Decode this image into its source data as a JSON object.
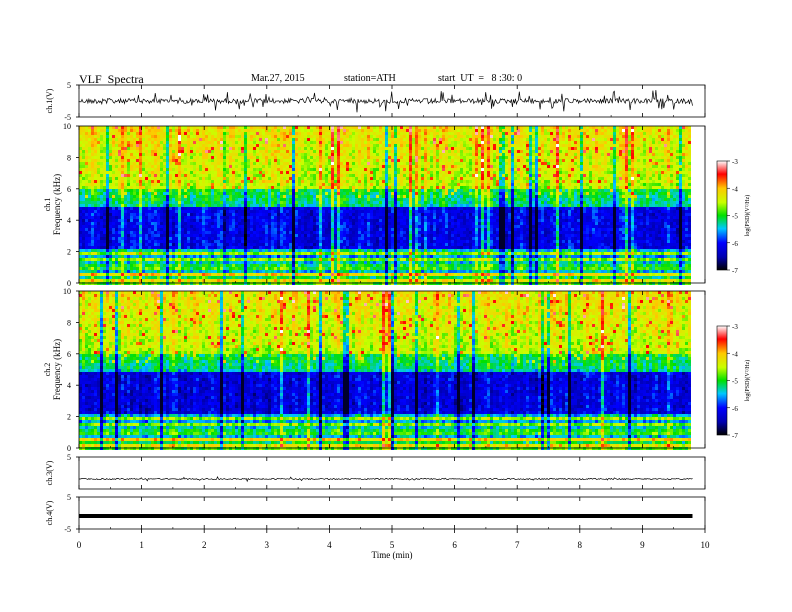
{
  "header": {
    "title": "VLF  Spectra",
    "date": "Mar.27, 2015",
    "station": "station=ATH",
    "start": "start  UT  =   8 :30: 0"
  },
  "chart_data": [
    {
      "type": "line",
      "panel": "ch.1 waveform",
      "ylabel": "ch.1(V)",
      "ylim": [
        -5,
        5
      ],
      "yticks": [
        5,
        -5
      ],
      "color": "#000000",
      "description_values": "noisy waveform near 0 V with spikes"
    },
    {
      "type": "heatmap",
      "panel": "ch.1 spectrogram",
      "ylabel_top": "ch.1",
      "ylabel": "Frequency  (kHz)",
      "ylim": [
        0,
        10
      ],
      "yticks": [
        0,
        2,
        4,
        6,
        8,
        10
      ],
      "xlim": [
        0,
        9.8
      ],
      "colorbar": {
        "label": "log(PSD)(V²/Hz)",
        "range": [
          -7,
          -3
        ],
        "ticks": [
          -3,
          -4,
          -5,
          -6,
          -7
        ]
      }
    },
    {
      "type": "heatmap",
      "panel": "ch.2 spectrogram",
      "ylabel_top": "ch.2",
      "ylabel": "Frequency  (kHz)",
      "ylim": [
        0,
        10
      ],
      "yticks": [
        0,
        2,
        4,
        6,
        8,
        10
      ],
      "xlim": [
        0,
        9.8
      ],
      "colorbar": {
        "label": "log(PSD)(V²/Hz)",
        "range": [
          -7,
          -3
        ],
        "ticks": [
          -3,
          -4,
          -5,
          -6,
          -7
        ]
      }
    },
    {
      "type": "line",
      "panel": "ch.3 waveform",
      "ylabel": "ch.3(V)",
      "ylim": [
        -5,
        5
      ],
      "yticks": [
        5
      ],
      "color": "#000000"
    },
    {
      "type": "line",
      "panel": "ch.4 waveform",
      "ylabel": "ch.4(V)",
      "ylim": [
        -5,
        5
      ],
      "yticks": [
        5,
        -5
      ],
      "color": "#000000"
    }
  ],
  "xaxis": {
    "label": "Time  (min)",
    "range": [
      0,
      10
    ],
    "ticks": [
      "0",
      "1",
      "2",
      "3",
      "4",
      "5",
      "6",
      "7",
      "8",
      "9",
      "10"
    ]
  }
}
